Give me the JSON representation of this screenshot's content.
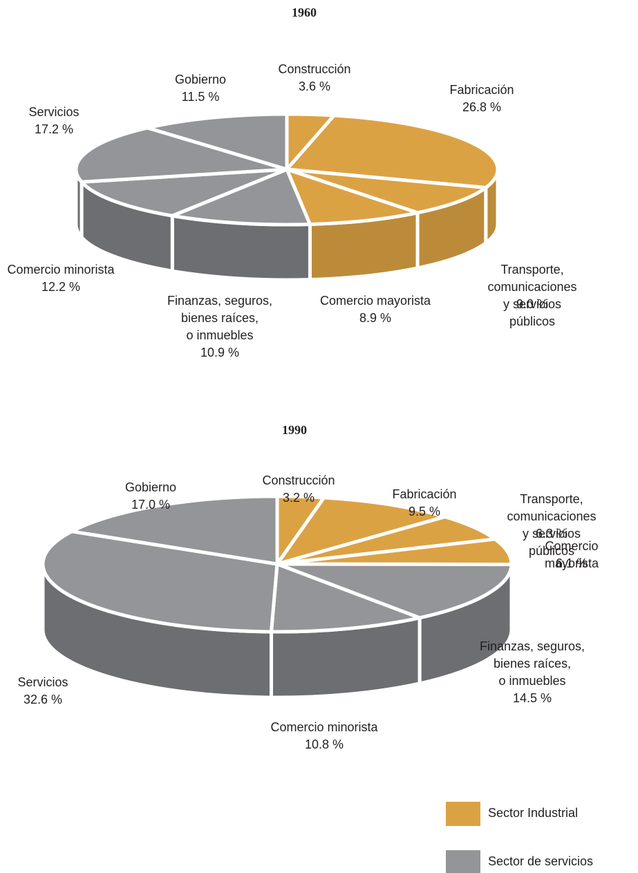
{
  "chart_data": [
    {
      "type": "pie",
      "title": "1960",
      "categories": [
        "Construcción",
        "Fabricación",
        "Transporte, comunicaciones\ny servicios públicos",
        "Comercio mayorista",
        "Finanzas, seguros,\nbienes raíces,\no inmuebles",
        "Comercio minorista",
        "Servicios",
        "Gobierno"
      ],
      "values": [
        3.6,
        26.8,
        9.0,
        8.9,
        10.9,
        12.2,
        17.2,
        11.5
      ],
      "value_labels": [
        "3.6 %",
        "26.8 %",
        "9.0 %",
        "8.9 %",
        "10.9 %",
        "12.2 %",
        "17.2 %",
        "11.5 %"
      ],
      "colors": [
        "#dba244",
        "#dba244",
        "#dba244",
        "#dba244",
        "#939598",
        "#939598",
        "#939598",
        "#939598"
      ]
    },
    {
      "type": "pie",
      "title": "1990",
      "categories": [
        "Construcción",
        "Fabricación",
        "Transporte, comunicaciones\ny servicios públicos",
        "Comercio mayorista",
        "Finanzas, seguros,\nbienes raíces,\no inmuebles",
        "Comercio minorista",
        "Servicios",
        "Gobierno"
      ],
      "values": [
        3.2,
        9.5,
        6.3,
        6.1,
        14.5,
        10.8,
        32.6,
        17.0
      ],
      "value_labels": [
        "3.2 %",
        "9.5 %",
        "6.3 %",
        "6.1 %",
        "14.5 %",
        "10.8 %",
        "32.6 %",
        "17.0 %"
      ],
      "colors": [
        "#dba244",
        "#dba244",
        "#dba244",
        "#dba244",
        "#939598",
        "#939598",
        "#939598",
        "#939598"
      ]
    }
  ],
  "legend": [
    {
      "name": "Sector Industrial",
      "color": "#dba244"
    },
    {
      "name": "Sector de servicios",
      "color": "#939598"
    }
  ]
}
